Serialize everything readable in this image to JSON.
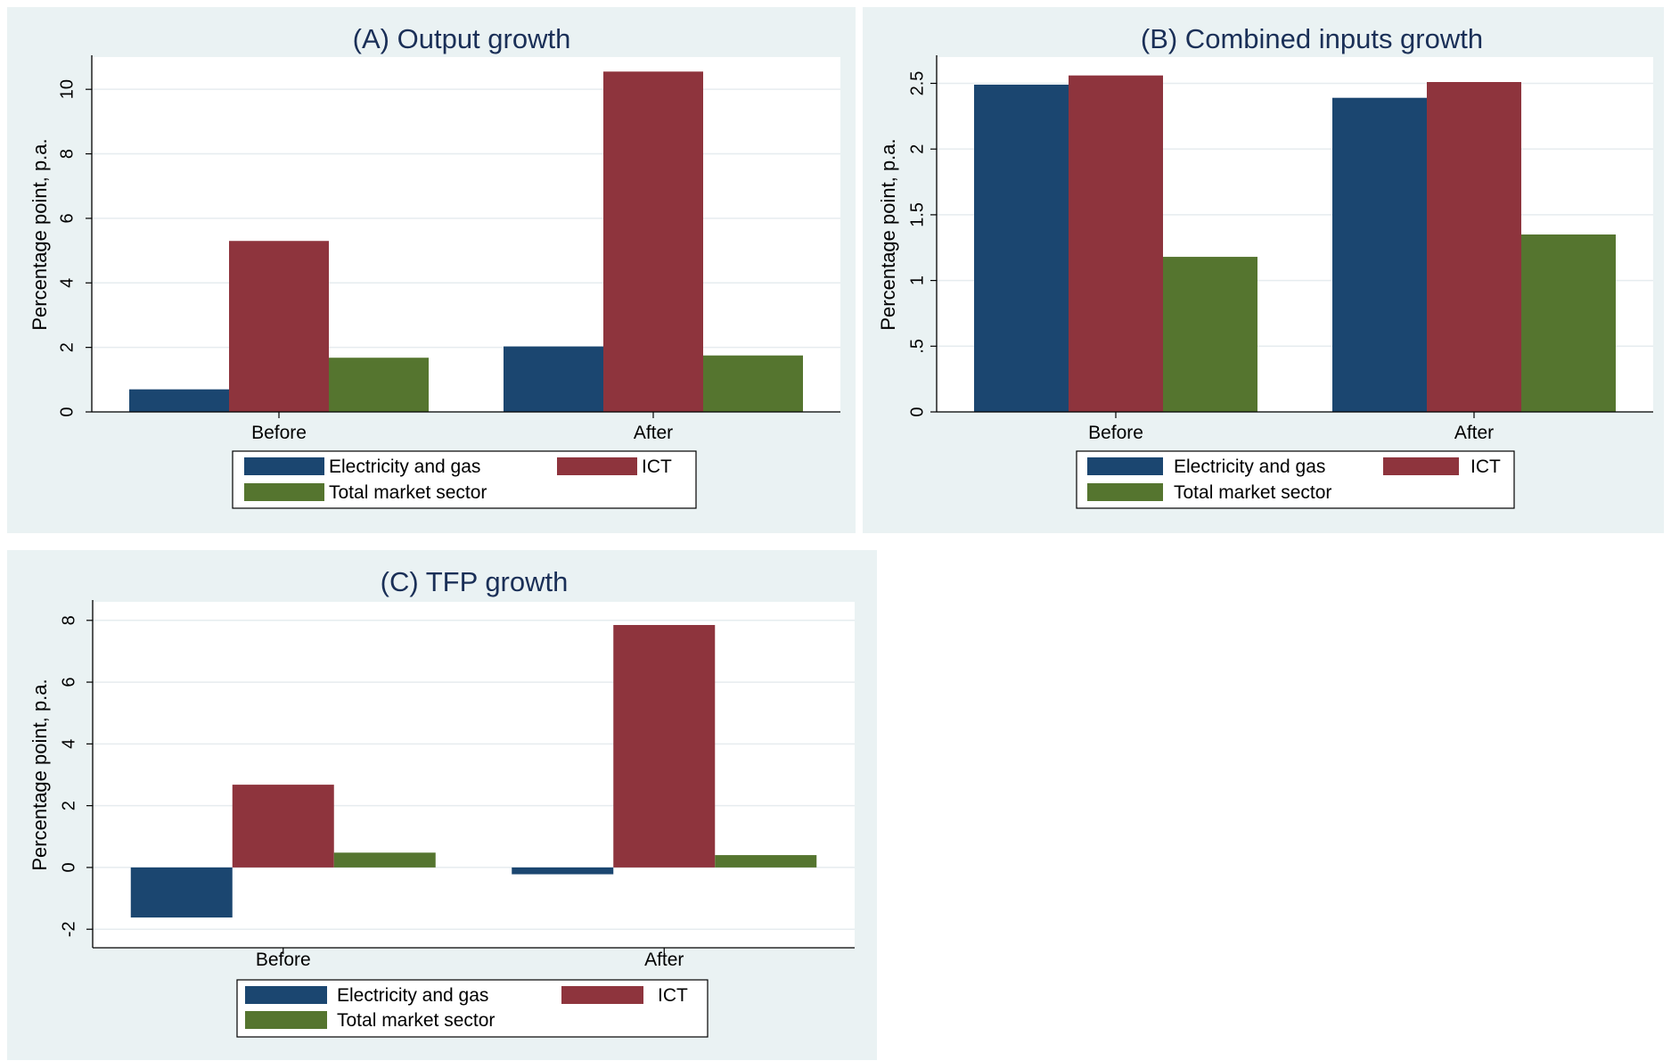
{
  "colors": {
    "electricity": "#1b4670",
    "ict": "#8e343d",
    "market": "#55752f",
    "panel_bg": "#eaf2f3",
    "grid": "#e6ecef"
  },
  "chart_data": [
    {
      "type": "bar",
      "title": "(A)  Output growth",
      "ylabel": "Percentage point, p.a.",
      "categories": [
        "Before",
        "After"
      ],
      "ylim": [
        0,
        11
      ],
      "yticks": [
        0,
        2,
        4,
        6,
        8,
        10
      ],
      "ytick_labels": [
        "0",
        "2",
        "4",
        "6",
        "8",
        "10"
      ],
      "grid": true,
      "legend_position": "bottom",
      "series": [
        {
          "name": "Electricity and gas",
          "values": [
            0.7,
            2.03
          ]
        },
        {
          "name": "ICT",
          "values": [
            5.3,
            10.55
          ]
        },
        {
          "name": "Total market sector",
          "values": [
            1.68,
            1.75
          ]
        }
      ]
    },
    {
      "type": "bar",
      "title": "(B)     Combined inputs growth",
      "ylabel": "Percentage point, p.a.",
      "categories": [
        "Before",
        "After"
      ],
      "ylim": [
        0,
        2.7
      ],
      "yticks": [
        0,
        0.5,
        1,
        1.5,
        2,
        2.5
      ],
      "ytick_labels": [
        "0",
        ".5",
        "1",
        "1.5",
        "2",
        "2.5"
      ],
      "grid": true,
      "legend_position": "bottom",
      "series": [
        {
          "name": "Electricity and gas",
          "values": [
            2.49,
            2.39
          ]
        },
        {
          "name": "ICT",
          "values": [
            2.56,
            2.51
          ]
        },
        {
          "name": "Total market sector",
          "values": [
            1.18,
            1.35
          ]
        }
      ]
    },
    {
      "type": "bar",
      "title": "(C) TFP growth",
      "ylabel": "Percentage point, p.a.",
      "categories": [
        "Before",
        "After"
      ],
      "ylim": [
        -2.6,
        8.6
      ],
      "yticks": [
        -2,
        0,
        2,
        4,
        6,
        8
      ],
      "ytick_labels": [
        "-2",
        "0",
        "2",
        "4",
        "6",
        "8"
      ],
      "grid": true,
      "legend_position": "bottom",
      "series": [
        {
          "name": "Electricity and gas",
          "values": [
            -1.62,
            -0.22
          ]
        },
        {
          "name": "ICT",
          "values": [
            2.68,
            7.85
          ]
        },
        {
          "name": "Total market sector",
          "values": [
            0.48,
            0.4
          ]
        }
      ]
    }
  ]
}
